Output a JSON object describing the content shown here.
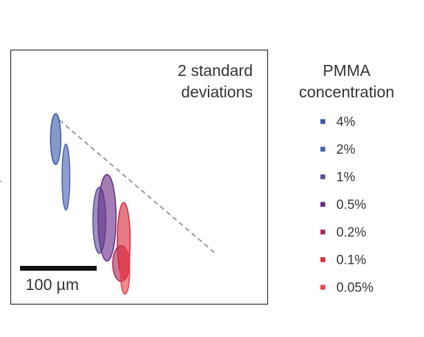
{
  "chart_data": {
    "type": "scatter",
    "title": "",
    "xlabel": "",
    "ylabel": "",
    "annotation": [
      "2 standard",
      "deviations"
    ],
    "scale_bar_label": "100 µm",
    "legend": {
      "title": [
        "PMMA",
        "concentration"
      ],
      "placement": "right"
    },
    "trend_line": {
      "style": "dashed",
      "color": "#8c8c8c"
    },
    "series": [
      {
        "name": "4%",
        "color": "#3c57a8",
        "ellipses": [
          {
            "cx": 0.175,
            "cy": 0.65,
            "rx": 0.02,
            "ry": 0.1
          }
        ]
      },
      {
        "name": "2%",
        "color": "#4a62b0",
        "ellipses": [
          {
            "cx": 0.215,
            "cy": 0.5,
            "rx": 0.015,
            "ry": 0.13
          }
        ]
      },
      {
        "name": "1%",
        "color": "#5a4f9c",
        "ellipses": [
          {
            "cx": 0.345,
            "cy": 0.33,
            "rx": 0.025,
            "ry": 0.13
          }
        ]
      },
      {
        "name": "0.5%",
        "color": "#6a2f86",
        "ellipses": [
          {
            "cx": 0.375,
            "cy": 0.34,
            "rx": 0.035,
            "ry": 0.17
          }
        ]
      },
      {
        "name": "0.2%",
        "color": "#a82a5a",
        "ellipses": [
          {
            "cx": 0.43,
            "cy": 0.16,
            "rx": 0.033,
            "ry": 0.07
          }
        ]
      },
      {
        "name": "0.1%",
        "color": "#d42c3c",
        "ellipses": [
          {
            "cx": 0.44,
            "cy": 0.25,
            "rx": 0.025,
            "ry": 0.15
          }
        ]
      },
      {
        "name": "0.05%",
        "color": "#e9414b",
        "ellipses": [
          {
            "cx": 0.445,
            "cy": 0.13,
            "rx": 0.018,
            "ry": 0.09
          }
        ]
      }
    ]
  }
}
